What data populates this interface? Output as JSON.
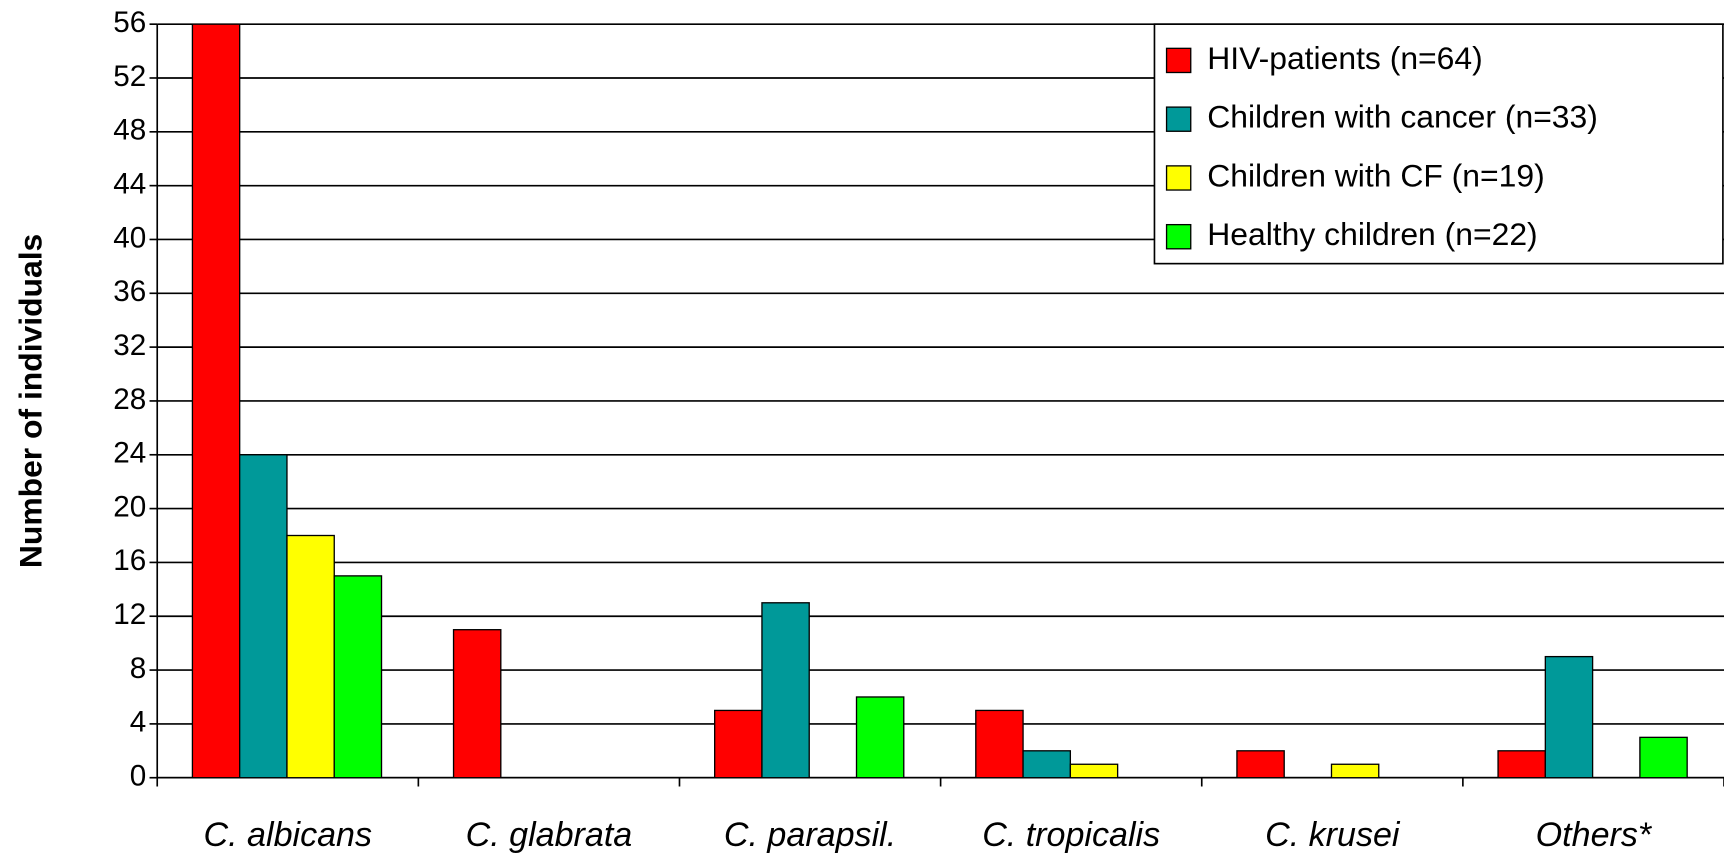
{
  "chart_data": {
    "type": "bar",
    "y_label": "Number of individuals",
    "categories": [
      "C. albicans",
      "C. glabrata",
      "C. parapsil.",
      "C. tropicalis",
      "C. krusei",
      "Others*"
    ],
    "series": [
      {
        "name": "HIV-patients (n=64)",
        "color": "#ff0000",
        "values": [
          56,
          11,
          5,
          5,
          2,
          2
        ]
      },
      {
        "name": "Children with cancer (n=33)",
        "color": "#009999",
        "values": [
          24,
          0,
          13,
          2,
          0,
          9
        ]
      },
      {
        "name": "Children with CF (n=19)",
        "color": "#ffff00",
        "values": [
          18,
          0,
          0,
          1,
          1,
          0
        ]
      },
      {
        "name": "Healthy children (n=22)",
        "color": "#00ff00",
        "values": [
          15,
          0,
          6,
          0,
          0,
          3
        ]
      }
    ],
    "ylim": [
      0,
      56
    ],
    "yticks": [
      0,
      4,
      8,
      12,
      16,
      20,
      24,
      28,
      32,
      36,
      40,
      44,
      48,
      52,
      56
    ],
    "grid": true,
    "legend": "top-right"
  }
}
